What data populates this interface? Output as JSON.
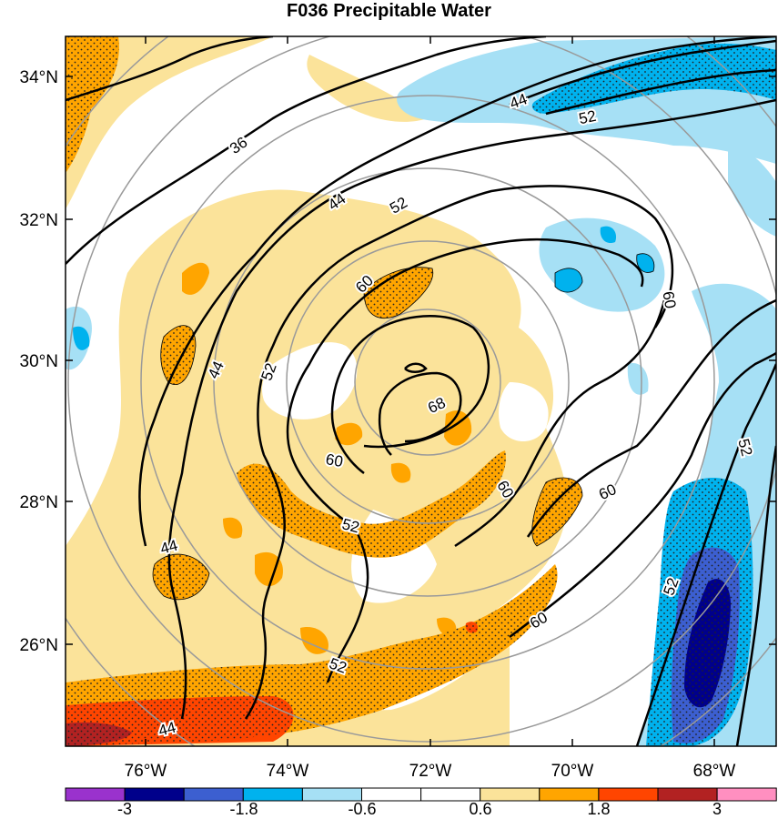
{
  "title": "F036 Precipitable Water",
  "axes": {
    "lat_labels": [
      "34°N",
      "32°N",
      "30°N",
      "28°N",
      "26°N"
    ],
    "lon_labels": [
      "76°W",
      "74°W",
      "72°W",
      "70°W",
      "68°W"
    ]
  },
  "contour_labels": [
    "36",
    "44",
    "44",
    "52",
    "52",
    "60",
    "60",
    "68",
    "60",
    "52",
    "60",
    "60",
    "52",
    "52",
    "60",
    "44",
    "44",
    "52",
    "52",
    "44"
  ],
  "colorbar": {
    "colors": [
      "#9a32cd",
      "#00008b",
      "#3c5fd0",
      "#00b2ee",
      "#a6e0f5",
      "#ffffff",
      "#ffffff",
      "#fbe39a",
      "#ffa500",
      "#ff4500",
      "#b22222",
      "#ff8fc0"
    ],
    "labels": [
      "-3",
      "-1.8",
      "-0.6",
      "0.6",
      "1.8",
      "3"
    ]
  }
}
